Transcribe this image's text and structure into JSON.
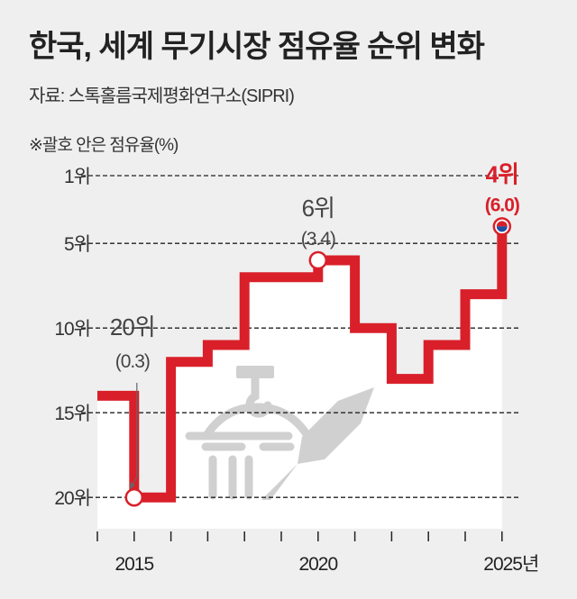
{
  "title": "한국, 세계 무기시장 점유율 순위 변화",
  "source": "자료: 스톡홀름국제평화연구소(SIPRI)",
  "note": "※괄호 안은 점유율(%)",
  "colors": {
    "line": "#d9202a",
    "grid": "#222222",
    "text": "#444444",
    "area": "#ffffff",
    "bg": "#efefef",
    "illustration": "#d0d0d0"
  },
  "chart_data": {
    "type": "line",
    "subtype": "step",
    "title": "한국, 세계 무기시장 점유율 순위 변화",
    "xlabel": "",
    "ylabel": "",
    "x": [
      2014,
      2015,
      2016,
      2017,
      2018,
      2019,
      2020,
      2021,
      2022,
      2023,
      2024,
      2025
    ],
    "series": [
      {
        "name": "순위",
        "values": [
          14,
          20,
          12,
          11,
          7,
          7,
          6,
          10,
          13,
          11,
          8,
          4
        ]
      }
    ],
    "ylim": [
      20,
      1
    ],
    "yticks": [
      1,
      5,
      10,
      15,
      20
    ],
    "ytick_labels": [
      "1위",
      "5위",
      "10위",
      "15위",
      "20위"
    ],
    "xtick_labels": [
      {
        "year": 2015,
        "label": "2015"
      },
      {
        "year": 2020,
        "label": "2020"
      },
      {
        "year": 2025,
        "label": "2025년"
      }
    ],
    "annotations": [
      {
        "year": 2015,
        "rank": 20,
        "label": "20위",
        "share": "(0.3)"
      },
      {
        "year": 2020,
        "rank": 6,
        "label": "6위",
        "share": "(3.4)"
      },
      {
        "year": 2025,
        "rank": 4,
        "label": "4위",
        "share": "(6.0)",
        "highlight": true
      }
    ],
    "grid": "dashed horizontal"
  }
}
